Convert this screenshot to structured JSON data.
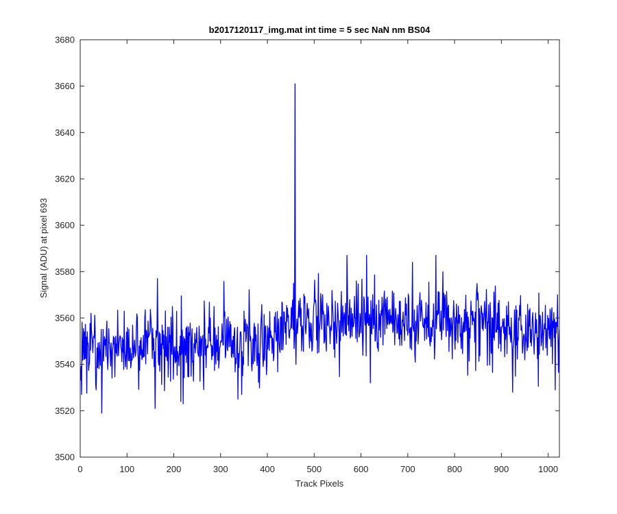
{
  "chart_data": {
    "type": "line",
    "title": "b2017120117_img.mat int time = 5 sec  NaN nm BS04",
    "xlabel": "Track Pixels",
    "ylabel": "Signal (ADU) at pixel 693",
    "xlim": [
      0,
      1024
    ],
    "ylim": [
      3500,
      3680
    ],
    "xticks": [
      0,
      100,
      200,
      300,
      400,
      500,
      600,
      700,
      800,
      900,
      1000
    ],
    "xtick_labels": [
      "0",
      "100",
      "200",
      "300",
      "400",
      "500",
      "600",
      "700",
      "800",
      "900",
      "1000"
    ],
    "yticks": [
      3500,
      3520,
      3540,
      3560,
      3580,
      3600,
      3620,
      3640,
      3660,
      3680
    ],
    "ytick_labels": [
      "3500",
      "3520",
      "3540",
      "3560",
      "3580",
      "3600",
      "3620",
      "3640",
      "3660",
      "3680"
    ],
    "grid": false,
    "box": true,
    "series": [
      {
        "color": "#0000ff",
        "x_start": 1,
        "x_step": 1,
        "baseline_points": [
          [
            0,
            3547
          ],
          [
            100,
            3548
          ],
          [
            200,
            3548
          ],
          [
            300,
            3549
          ],
          [
            380,
            3551
          ],
          [
            450,
            3556
          ],
          [
            550,
            3559
          ],
          [
            650,
            3559
          ],
          [
            750,
            3559
          ],
          [
            850,
            3557
          ],
          [
            950,
            3555
          ],
          [
            1024,
            3555
          ]
        ],
        "noise_std": 7.5,
        "noise_seed": 693,
        "anchor_points": [
          [
            3,
            3527
          ],
          [
            46,
            3519
          ],
          [
            160,
            3521
          ],
          [
            165,
            3577
          ],
          [
            215,
            3524
          ],
          [
            220,
            3523
          ],
          [
            337,
            3525
          ],
          [
            345,
            3527
          ],
          [
            456,
            3575
          ],
          [
            459,
            3661
          ],
          [
            461,
            3540
          ],
          [
            570,
            3587
          ],
          [
            590,
            3576
          ],
          [
            612,
            3587
          ],
          [
            620,
            3532
          ],
          [
            710,
            3584
          ],
          [
            760,
            3587
          ],
          [
            790,
            3560
          ],
          [
            924,
            3528
          ],
          [
            1015,
            3529
          ],
          [
            1020,
            3570
          ],
          [
            1024,
            3555
          ]
        ]
      }
    ]
  }
}
